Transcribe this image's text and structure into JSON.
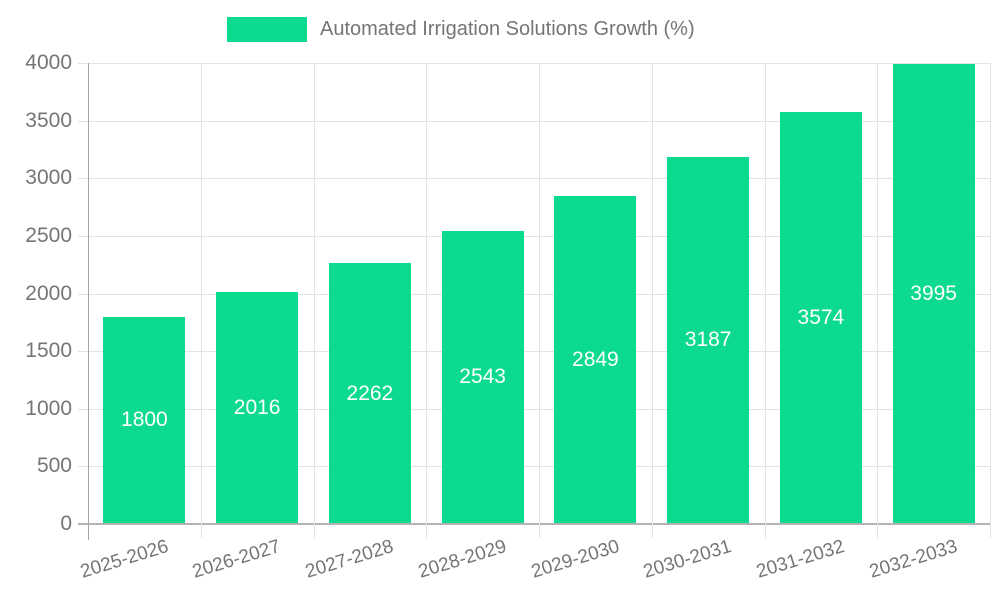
{
  "legend": {
    "label": "Automated Irrigation Solutions Growth (%)",
    "position": "top"
  },
  "chart_data": {
    "type": "bar",
    "title": "",
    "xlabel": "",
    "ylabel": "",
    "categories": [
      "2025-2026",
      "2026-2027",
      "2027-2028",
      "2028-2029",
      "2029-2030",
      "2030-2031",
      "2031-2032",
      "2032-2033"
    ],
    "series": [
      {
        "name": "Automated Irrigation Solutions Growth (%)",
        "values": [
          1800,
          2016,
          2262,
          2543,
          2849,
          3187,
          3574,
          3995
        ]
      }
    ],
    "value_labels_shown": true,
    "ylim": [
      0,
      4000
    ],
    "ytick_step": 500,
    "yticks": [
      0,
      500,
      1000,
      1500,
      2000,
      2500,
      3000,
      3500,
      4000
    ],
    "grid": true,
    "legend_position": "top",
    "colors": {
      "bar": "#0cdb8f",
      "grid": "#e3e3e3",
      "axis": "#a6a6a6",
      "baseline": "#b3b3b3",
      "tick_label": "#757575",
      "value_label": "#ffffff",
      "background": "#ffffff"
    }
  }
}
